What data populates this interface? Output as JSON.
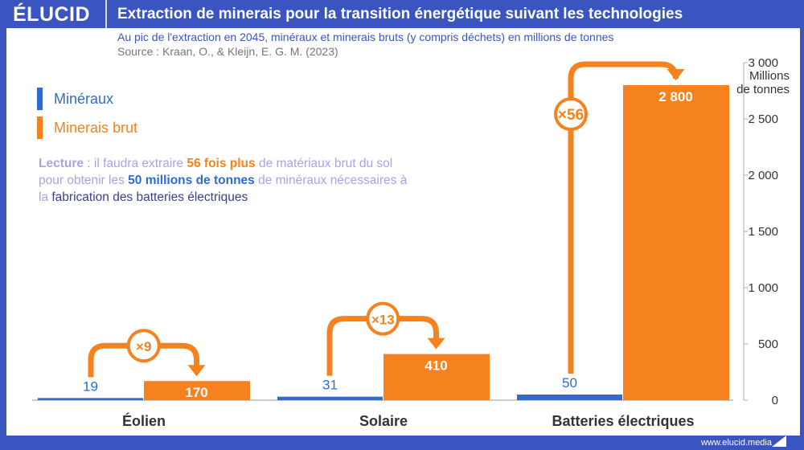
{
  "header": {
    "logo": "ÉLUCID",
    "title": "Extraction de minerais pour la transition énergétique suivant les technologies"
  },
  "subtitle": "Au pic de l'extraction en 2045, minéraux et minerais bruts (y compris déchets) en millions de tonnes",
  "source": "Source : Kraan, O., & Kleijn, E. G. M. (2023)",
  "note": {
    "p1": "Lecture",
    "p2": " : il faudra extraire ",
    "p3": "56 fois plus",
    "p4": " de matériaux brut du sol pour obtenir les ",
    "p5": "50 millions de tonnes",
    "p6": " de minéraux nécessaires à la ",
    "p7": "fabrication des batteries électriques"
  },
  "footer": "www.elucid.media",
  "colors": {
    "mineraux": "#2f6bd0",
    "minerais": "#f5821f",
    "brand": "#3a55c0"
  },
  "chart_data": {
    "type": "bar",
    "categories": [
      "Éolien",
      "Solaire",
      "Batteries électriques"
    ],
    "series": [
      {
        "name": "Minéraux",
        "values": [
          19,
          31,
          50
        ]
      },
      {
        "name": "Minerais brut",
        "values": [
          170,
          410,
          2800
        ]
      }
    ],
    "value_labels": {
      "mineraux": [
        "19",
        "31",
        "50"
      ],
      "minerais": [
        "170",
        "410",
        "2 800"
      ]
    },
    "multipliers": [
      "×9",
      "×13",
      "×56"
    ],
    "ylabel": "Millions\nde tonnes",
    "ylabel_lines": [
      "Millions",
      "de tonnes"
    ],
    "ylim": [
      0,
      3000
    ],
    "yticks": [
      0,
      500,
      1000,
      1500,
      2000,
      2500,
      3000
    ],
    "ytick_labels": [
      "0",
      "500",
      "1 000",
      "1 500",
      "2 000",
      "2 500",
      "3 000"
    ],
    "axis_side": "right",
    "legend": "top-left",
    "grid": false
  }
}
